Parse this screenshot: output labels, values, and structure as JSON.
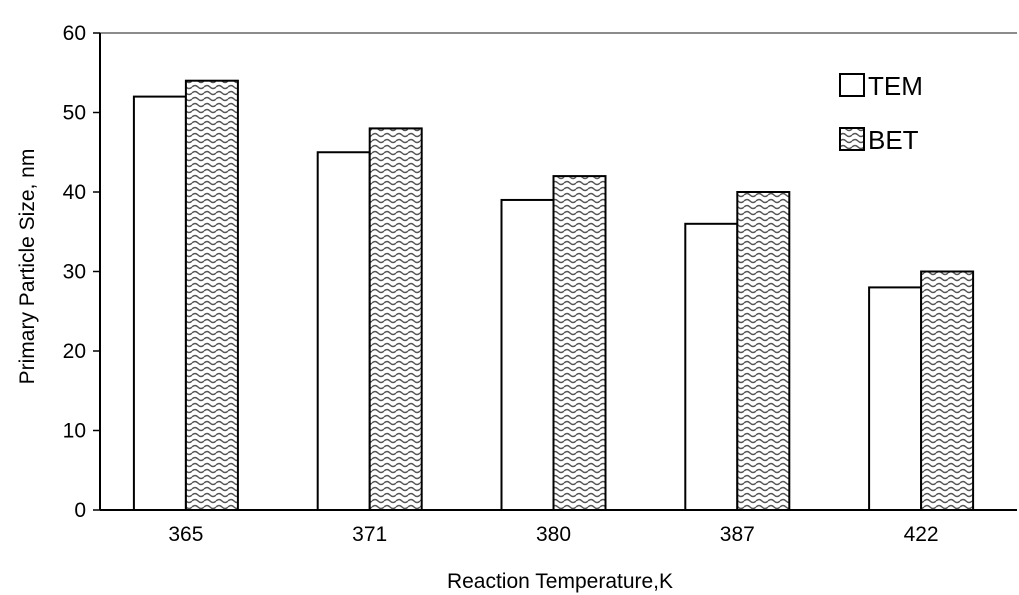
{
  "chart_data": {
    "type": "bar",
    "title": "",
    "xlabel": "Reaction Temperature,K",
    "ylabel": "Primary Particle Size, nm",
    "categories": [
      "365",
      "371",
      "380",
      "387",
      "422"
    ],
    "ylim": [
      0,
      60
    ],
    "yticks": [
      0,
      10,
      20,
      30,
      40,
      50,
      60
    ],
    "grid": false,
    "legend_position": "top-right",
    "series": [
      {
        "name": "TEM",
        "values": [
          52,
          45,
          39,
          36,
          28
        ],
        "fill": "#ffffff",
        "pattern": "none"
      },
      {
        "name": "BET",
        "values": [
          54,
          48,
          42,
          40,
          30
        ],
        "fill": "#ffffff",
        "pattern": "wavy-hatch"
      }
    ],
    "colors": {
      "stroke": "#000000",
      "pattern_line": "#555555",
      "background": "#ffffff"
    }
  }
}
